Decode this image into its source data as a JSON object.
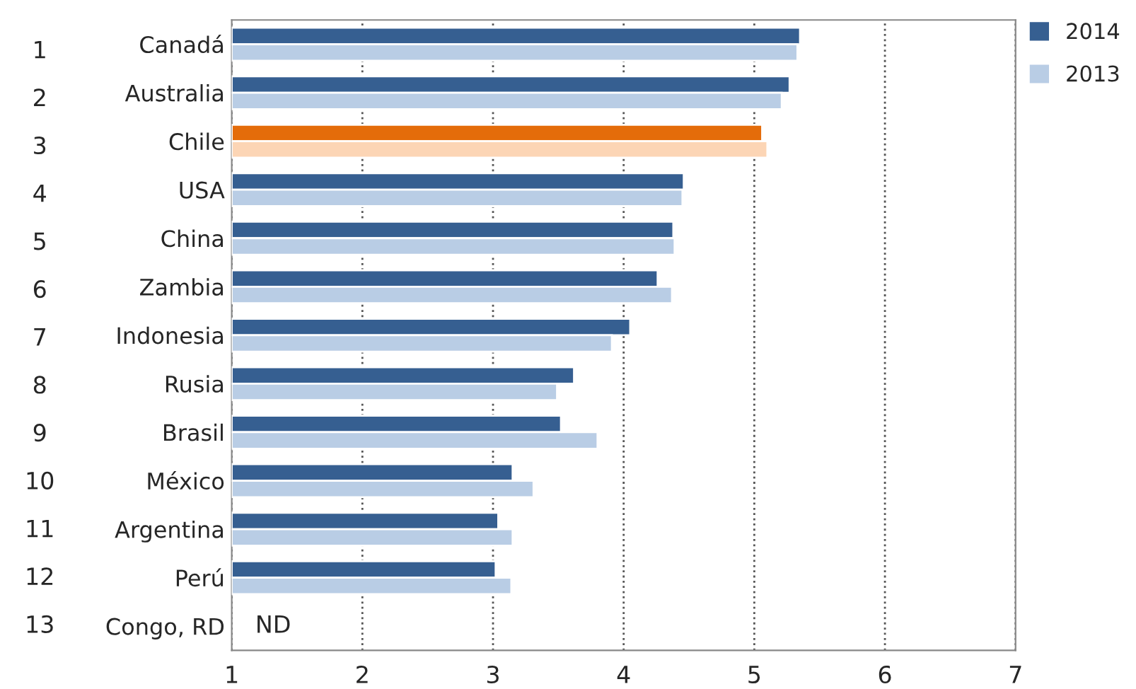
{
  "chart_data": {
    "type": "bar",
    "orientation": "horizontal",
    "categories": [
      "Canadá",
      "Australia",
      "Chile",
      "USA",
      "China",
      "Zambia",
      "Indonesia",
      "Rusia",
      "Brasil",
      "México",
      "Argentina",
      "Perú",
      "Congo, RD"
    ],
    "series": [
      {
        "name": "2014",
        "color": "#365f91",
        "colors": [
          "#365f91",
          "#365f91",
          "#e46c0a",
          "#365f91",
          "#365f91",
          "#365f91",
          "#365f91",
          "#365f91",
          "#365f91",
          "#365f91",
          "#365f91",
          "#365f91",
          "#365f91"
        ],
        "values": [
          5.35,
          5.27,
          5.06,
          4.46,
          4.38,
          4.26,
          4.05,
          3.62,
          3.52,
          3.15,
          3.04,
          3.02,
          null
        ]
      },
      {
        "name": "2013",
        "color": "#b9cde5",
        "colors": [
          "#b9cde5",
          "#b9cde5",
          "#fcd5b5",
          "#b9cde5",
          "#b9cde5",
          "#b9cde5",
          "#b9cde5",
          "#b9cde5",
          "#b9cde5",
          "#b9cde5",
          "#b9cde5",
          "#b9cde5",
          "#b9cde5"
        ],
        "values": [
          5.33,
          5.21,
          5.1,
          4.45,
          4.39,
          4.37,
          3.91,
          3.49,
          3.8,
          3.31,
          3.15,
          3.14,
          null
        ]
      }
    ],
    "xlim": [
      1,
      7
    ],
    "xticks": [
      1,
      2,
      3,
      4,
      5,
      6,
      7
    ],
    "grid": "x",
    "legend": "top right",
    "annotations": [
      "ND",
      "1",
      "2",
      "3",
      "4",
      "5",
      "6",
      "7",
      "8",
      "9",
      "10",
      "11",
      "12",
      "13"
    ]
  }
}
